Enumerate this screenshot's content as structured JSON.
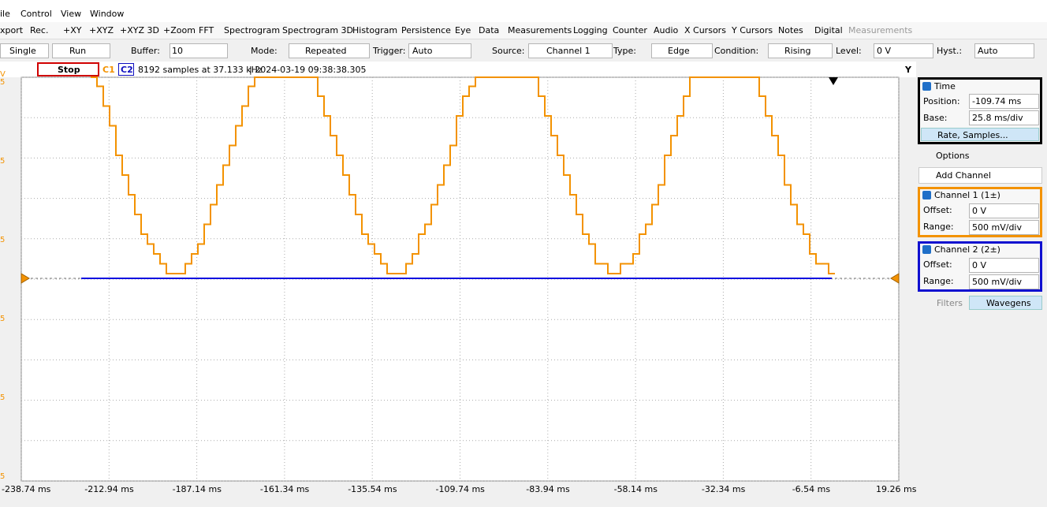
{
  "menu": [
    "ile",
    "Control",
    "View",
    "Window"
  ],
  "toolbar": [
    "xport",
    "Rec.",
    "+XY",
    "+XYZ",
    "+XYZ 3D",
    "+Zoom",
    "FFT",
    "Spectrogram",
    "Spectrogram 3D",
    "Histogram",
    "Persistence",
    "Eye",
    "Data",
    "Measurements",
    "Logging",
    "Counter",
    "Audio",
    "X Cursors",
    "Y Cursors",
    "Notes",
    "Digital"
  ],
  "toolbar_disabled": "Measurements",
  "controls": {
    "single": "Single",
    "run": "Run",
    "buffer_label": "Buffer:",
    "buffer": "10",
    "mode_label": "Mode:",
    "mode": "Repeated",
    "trigger_label": "Trigger:",
    "trigger": "Auto",
    "source_label": "Source:",
    "source": "Channel 1",
    "type_label": "Type:",
    "type": "Edge",
    "condition_label": "Condition:",
    "condition": "Rising",
    "level_label": "Level:",
    "level": "0 V",
    "hyst_label": "Hyst.:",
    "hyst": "Auto"
  },
  "status": {
    "stop": "Stop",
    "c1": "C1",
    "c2": "C2",
    "samples": "8192 samples at 37.133 kHz",
    "timestamp": "| 2024-03-19 09:38:38.305",
    "y": "Y"
  },
  "plot": {
    "y_labels": [
      "V",
      "5",
      "5",
      "5",
      "5",
      "5",
      "5"
    ],
    "x_labels": [
      "-238.74 ms",
      "-212.94 ms",
      "-187.14 ms",
      "-161.34 ms",
      "-135.54 ms",
      "-109.74 ms",
      "-83.94 ms",
      "-58.14 ms",
      "-32.34 ms",
      "-6.54 ms",
      "19.26 ms"
    ]
  },
  "panel": {
    "time": {
      "title": "Time",
      "position_label": "Position:",
      "position": "-109.74 ms",
      "base_label": "Base:",
      "base": "25.8 ms/div",
      "rate": "Rate, Samples..."
    },
    "options": "Options",
    "add_channel": "Add Channel",
    "channel1": {
      "title": "Channel 1 (1±)",
      "offset_label": "Offset:",
      "offset": "0 V",
      "range_label": "Range:",
      "range": "500 mV/div"
    },
    "channel2": {
      "title": "Channel 2 (2±)",
      "offset_label": "Offset:",
      "offset": "0 V",
      "range_label": "Range:",
      "range": "500 mV/div"
    },
    "filters": "Filters",
    "wavegens": "Wavegens"
  }
}
